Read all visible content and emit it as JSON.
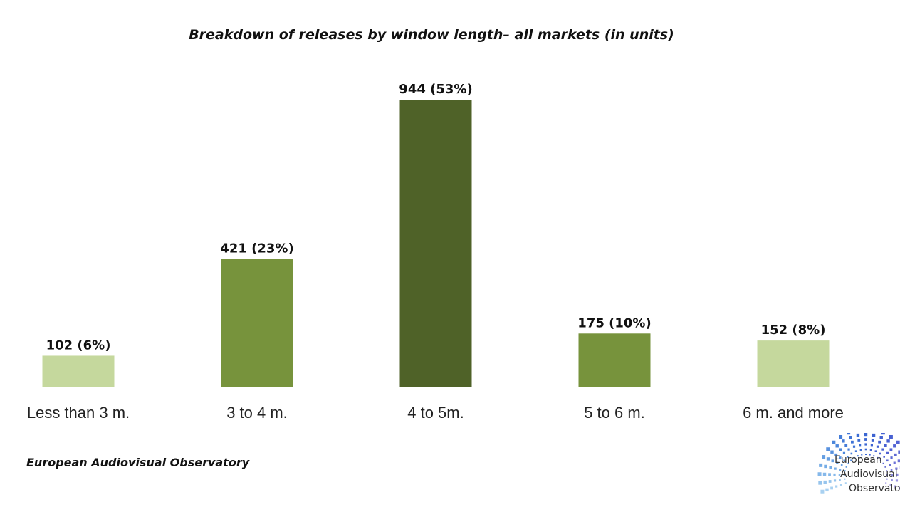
{
  "chart_data": {
    "type": "bar",
    "title": "Breakdown of releases by window length– all markets (in units)",
    "categories": [
      "Less than 3 m.",
      "3 to 4 m.",
      "4 to 5m.",
      "5 to 6 m.",
      "6 m. and more"
    ],
    "values": [
      102,
      421,
      944,
      175,
      152
    ],
    "data_labels": [
      "102 (6%)",
      "421 (23%)",
      "944 (53%)",
      "175 (10%)",
      "152 (8%)"
    ],
    "colors": [
      "#c5d89d",
      "#77933c",
      "#4f6228",
      "#77933c",
      "#c5d89d"
    ],
    "xlabel": "",
    "ylabel": "",
    "ylim": [
      0,
      944
    ],
    "grid": false,
    "legend": "none"
  },
  "source": "European Audiovisual Observatory",
  "logo": {
    "lines": [
      "European",
      "Audiovisual",
      "Observator"
    ]
  }
}
